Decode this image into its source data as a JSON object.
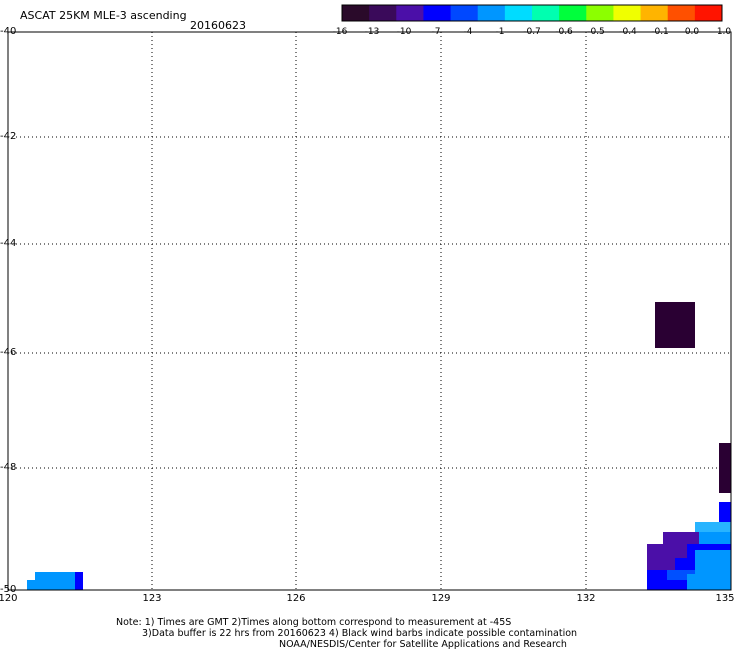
{
  "header": {
    "title": "ASCAT 25KM MLE-3 ascending",
    "date": "20160623"
  },
  "colorbar": {
    "labels": [
      "-16",
      "-13",
      "-10",
      "-7",
      "-4",
      "-1",
      "-0.7",
      "-0.6",
      "-0.5",
      "-0.4",
      "-0.1",
      "0.0",
      "1.0"
    ],
    "colors": [
      "#2a0a2a",
      "#3a0a5a",
      "#4b0fa8",
      "#0000ff",
      "#0048ff",
      "#0096ff",
      "#00dcff",
      "#00ffb0",
      "#00ff3c",
      "#8cff00",
      "#f0ff00",
      "#ffb400",
      "#ff5000",
      "#ff1400"
    ]
  },
  "map": {
    "lat_labels": [
      "-40",
      "-42",
      "-44",
      "-46",
      "-48",
      "-50"
    ],
    "lon_labels": [
      "120",
      "123",
      "126",
      "129",
      "132",
      "135"
    ],
    "colors": {
      "dark": "#2a0033",
      "purple": "#4b0fa8",
      "blue": "#0000ff",
      "mid_blue": "#0050ff",
      "light_blue": "#0096ff",
      "sky": "#28b4ff"
    }
  },
  "notes": {
    "line1": "Note: 1) Times are GMT 2)Times along bottom correspond to measurement at -45S",
    "line2": "3)Data buffer is 22 hrs from 20160623 4) Black wind barbs indicate possible contamination",
    "line3": "NOAA/NESDIS/Center for Satellite Applications and Research"
  }
}
